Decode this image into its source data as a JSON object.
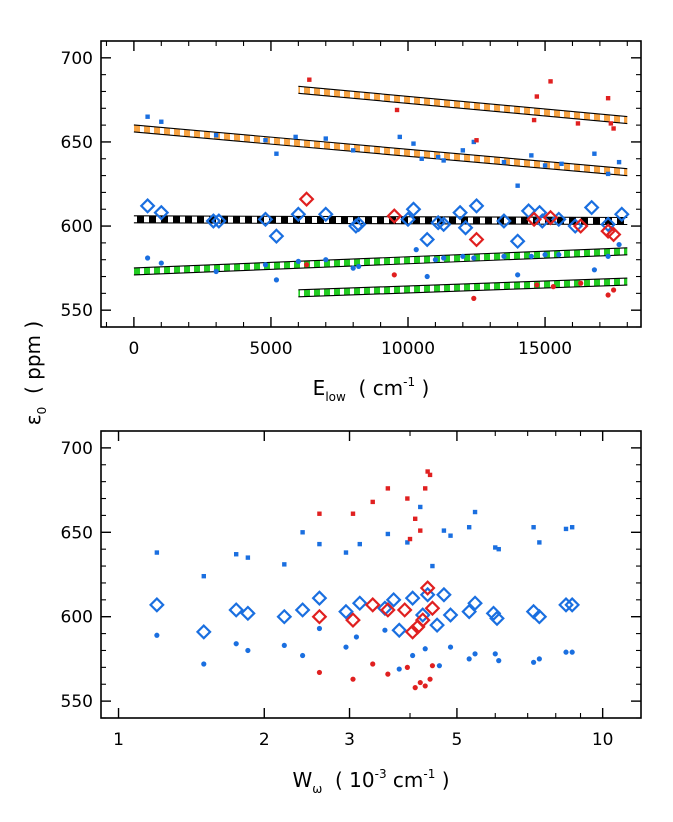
{
  "chart_data": [
    {
      "type": "scatter",
      "xlabel_main": "E",
      "xlabel_sub": "low",
      "xlabel_unit_pre": "  ( cm",
      "xlabel_unit_sup": "-1",
      "xlabel_unit_post": " )",
      "ylabel_main": "ε",
      "ylabel_sub": "0",
      "ylabel_unit": "  ( ppm )",
      "xlim": [
        -1200,
        18500
      ],
      "ylim": [
        540,
        710
      ],
      "xticks": [
        0,
        5000,
        10000,
        15000
      ],
      "xtick_labels": [
        "0",
        "5000",
        "10000",
        "15000"
      ],
      "yticks": [
        550,
        600,
        650,
        700
      ],
      "ytick_labels": [
        "550",
        "600",
        "650",
        "700"
      ],
      "x_minor_step": 1000,
      "y_minor_step": 10,
      "fits": [
        {
          "x": [
            6000,
            18000
          ],
          "y": [
            681,
            663
          ],
          "style": "orange"
        },
        {
          "x": [
            0,
            18000
          ],
          "y": [
            658,
            632
          ],
          "style": "orange"
        },
        {
          "x": [
            0,
            18000
          ],
          "y": [
            604,
            603
          ],
          "style": "black"
        },
        {
          "x": [
            0,
            18000
          ],
          "y": [
            573,
            585
          ],
          "style": "green"
        },
        {
          "x": [
            6000,
            18000
          ],
          "y": [
            560,
            567
          ],
          "style": "green"
        }
      ],
      "series": [
        {
          "marker": "square",
          "color": "#1a6fe0",
          "points": [
            [
              500,
              665
            ],
            [
              1000,
              662
            ],
            [
              3000,
              654
            ],
            [
              4800,
              651
            ],
            [
              5200,
              643
            ],
            [
              5900,
              653
            ],
            [
              7000,
              652
            ],
            [
              8000,
              645
            ],
            [
              9700,
              653
            ],
            [
              10200,
              649
            ],
            [
              10500,
              640
            ],
            [
              11100,
              641
            ],
            [
              11300,
              639
            ],
            [
              12000,
              645
            ],
            [
              12400,
              650
            ],
            [
              13500,
              638
            ],
            [
              14000,
              624
            ],
            [
              14500,
              642
            ],
            [
              15000,
              636
            ],
            [
              15600,
              637
            ],
            [
              16800,
              643
            ],
            [
              17300,
              631
            ],
            [
              17700,
              638
            ]
          ]
        },
        {
          "marker": "square",
          "color": "#e02020",
          "points": [
            [
              6400,
              687
            ],
            [
              9600,
              669
            ],
            [
              12500,
              651
            ],
            [
              14600,
              663
            ],
            [
              14700,
              677
            ],
            [
              15200,
              686
            ],
            [
              16200,
              661
            ],
            [
              17300,
              676
            ],
            [
              17400,
              661
            ],
            [
              17500,
              658
            ]
          ]
        },
        {
          "marker": "diamond",
          "color": "#1a6fe0",
          "points": [
            [
              500,
              612
            ],
            [
              1000,
              608
            ],
            [
              2900,
              603
            ],
            [
              3100,
              603
            ],
            [
              4800,
              604
            ],
            [
              5200,
              594
            ],
            [
              6000,
              607
            ],
            [
              7000,
              607
            ],
            [
              8100,
              600
            ],
            [
              8200,
              601
            ],
            [
              10000,
              604
            ],
            [
              10200,
              610
            ],
            [
              10700,
              592
            ],
            [
              11100,
              602
            ],
            [
              11300,
              601
            ],
            [
              11900,
              608
            ],
            [
              12100,
              599
            ],
            [
              12500,
              612
            ],
            [
              13500,
              603
            ],
            [
              14000,
              591
            ],
            [
              14400,
              609
            ],
            [
              14800,
              608
            ],
            [
              14900,
              603
            ],
            [
              15500,
              604
            ],
            [
              16100,
              600
            ],
            [
              16700,
              611
            ],
            [
              17300,
              601
            ],
            [
              17800,
              607
            ]
          ]
        },
        {
          "marker": "diamond",
          "color": "#e02020",
          "points": [
            [
              6300,
              616
            ],
            [
              9500,
              606
            ],
            [
              12500,
              592
            ],
            [
              14600,
              604
            ],
            [
              15200,
              605
            ],
            [
              16300,
              600
            ],
            [
              17300,
              597
            ],
            [
              17500,
              595
            ]
          ]
        },
        {
          "marker": "dot",
          "color": "#1a6fe0",
          "points": [
            [
              500,
              581
            ],
            [
              1000,
              578
            ],
            [
              3000,
              573
            ],
            [
              4800,
              577
            ],
            [
              5200,
              568
            ],
            [
              6000,
              579
            ],
            [
              7000,
              580
            ],
            [
              8000,
              575
            ],
            [
              8200,
              576
            ],
            [
              10300,
              586
            ],
            [
              10700,
              570
            ],
            [
              11000,
              580
            ],
            [
              11300,
              581
            ],
            [
              12000,
              582
            ],
            [
              12400,
              581
            ],
            [
              13500,
              582
            ],
            [
              14000,
              571
            ],
            [
              14500,
              582
            ],
            [
              15000,
              583
            ],
            [
              15500,
              583
            ],
            [
              16800,
              574
            ],
            [
              17300,
              582
            ],
            [
              17700,
              589
            ]
          ]
        },
        {
          "marker": "dot",
          "color": "#e02020",
          "points": [
            [
              6300,
              577
            ],
            [
              9500,
              571
            ],
            [
              12400,
              557
            ],
            [
              14700,
              565
            ],
            [
              15300,
              564
            ],
            [
              16300,
              566
            ],
            [
              17300,
              559
            ],
            [
              17500,
              562
            ]
          ]
        }
      ]
    },
    {
      "type": "scatter",
      "xscale": "log",
      "xlabel_main": "W",
      "xlabel_sub": "ω",
      "xlabel_unit_pre": "  ( 10",
      "xlabel_unit_sup": "-3",
      "xlabel_unit_mid": " cm",
      "xlabel_unit_sup2": "-1",
      "xlabel_unit_post": " )",
      "xlim": [
        0.92,
        12.0
      ],
      "ylim": [
        540,
        710
      ],
      "xticks": [
        1,
        2,
        3,
        5,
        10
      ],
      "xtick_labels": [
        "1",
        "2",
        "3",
        "5",
        "10"
      ],
      "x_minor_ticks": [
        4,
        6,
        7,
        8,
        9
      ],
      "yticks": [
        550,
        600,
        650,
        700
      ],
      "ytick_labels": [
        "550",
        "600",
        "650",
        "700"
      ],
      "y_minor_step": 10,
      "series": [
        {
          "marker": "square",
          "color": "#1a6fe0",
          "points": [
            [
              1.2,
              638
            ],
            [
              1.5,
              624
            ],
            [
              1.75,
              637
            ],
            [
              1.85,
              635
            ],
            [
              2.2,
              631
            ],
            [
              2.4,
              650
            ],
            [
              2.6,
              643
            ],
            [
              2.95,
              638
            ],
            [
              3.15,
              643
            ],
            [
              3.6,
              649
            ],
            [
              3.95,
              644
            ],
            [
              4.2,
              665
            ],
            [
              4.45,
              630
            ],
            [
              4.7,
              651
            ],
            [
              4.85,
              648
            ],
            [
              5.3,
              653
            ],
            [
              5.45,
              662
            ],
            [
              6.0,
              641
            ],
            [
              6.1,
              640
            ],
            [
              7.2,
              653
            ],
            [
              7.4,
              644
            ],
            [
              8.4,
              652
            ],
            [
              8.65,
              653
            ]
          ]
        },
        {
          "marker": "square",
          "color": "#e02020",
          "points": [
            [
              2.6,
              661
            ],
            [
              3.05,
              661
            ],
            [
              3.35,
              668
            ],
            [
              3.6,
              676
            ],
            [
              3.95,
              670
            ],
            [
              4.1,
              658
            ],
            [
              4.2,
              651
            ],
            [
              4.3,
              676
            ],
            [
              4.35,
              686
            ],
            [
              4.4,
              684
            ],
            [
              4.0,
              646
            ]
          ]
        },
        {
          "marker": "diamond",
          "color": "#1a6fe0",
          "points": [
            [
              1.2,
              607
            ],
            [
              1.5,
              591
            ],
            [
              1.75,
              604
            ],
            [
              1.85,
              602
            ],
            [
              2.2,
              600
            ],
            [
              2.4,
              604
            ],
            [
              2.6,
              611
            ],
            [
              2.95,
              603
            ],
            [
              3.15,
              608
            ],
            [
              3.55,
              605
            ],
            [
              3.7,
              610
            ],
            [
              3.8,
              592
            ],
            [
              4.05,
              611
            ],
            [
              4.25,
              601
            ],
            [
              4.35,
              613
            ],
            [
              4.55,
              595
            ],
            [
              4.7,
              613
            ],
            [
              4.85,
              601
            ],
            [
              5.3,
              603
            ],
            [
              5.45,
              608
            ],
            [
              5.95,
              602
            ],
            [
              6.05,
              599
            ],
            [
              7.2,
              603
            ],
            [
              7.4,
              600
            ],
            [
              8.4,
              607
            ],
            [
              8.65,
              607
            ]
          ]
        },
        {
          "marker": "diamond",
          "color": "#e02020",
          "points": [
            [
              2.6,
              600
            ],
            [
              3.05,
              598
            ],
            [
              3.35,
              607
            ],
            [
              3.6,
              604
            ],
            [
              3.9,
              604
            ],
            [
              4.05,
              591
            ],
            [
              4.15,
              594
            ],
            [
              4.25,
              598
            ],
            [
              4.35,
              617
            ],
            [
              4.45,
              605
            ]
          ]
        },
        {
          "marker": "dot",
          "color": "#1a6fe0",
          "points": [
            [
              1.2,
              589
            ],
            [
              1.5,
              572
            ],
            [
              1.75,
              584
            ],
            [
              1.85,
              580
            ],
            [
              2.2,
              583
            ],
            [
              2.4,
              577
            ],
            [
              2.6,
              593
            ],
            [
              2.95,
              582
            ],
            [
              3.1,
              588
            ],
            [
              3.55,
              592
            ],
            [
              3.8,
              569
            ],
            [
              4.05,
              577
            ],
            [
              4.3,
              581
            ],
            [
              4.6,
              571
            ],
            [
              4.85,
              582
            ],
            [
              5.3,
              575
            ],
            [
              5.45,
              578
            ],
            [
              6.0,
              578
            ],
            [
              6.1,
              574
            ],
            [
              7.2,
              573
            ],
            [
              7.4,
              575
            ],
            [
              8.4,
              579
            ],
            [
              8.65,
              579
            ]
          ]
        },
        {
          "marker": "dot",
          "color": "#e02020",
          "points": [
            [
              2.6,
              567
            ],
            [
              3.05,
              563
            ],
            [
              3.35,
              572
            ],
            [
              3.6,
              566
            ],
            [
              3.95,
              570
            ],
            [
              4.1,
              558
            ],
            [
              4.2,
              561
            ],
            [
              4.3,
              559
            ],
            [
              4.4,
              563
            ],
            [
              4.45,
              571
            ]
          ]
        }
      ]
    }
  ]
}
